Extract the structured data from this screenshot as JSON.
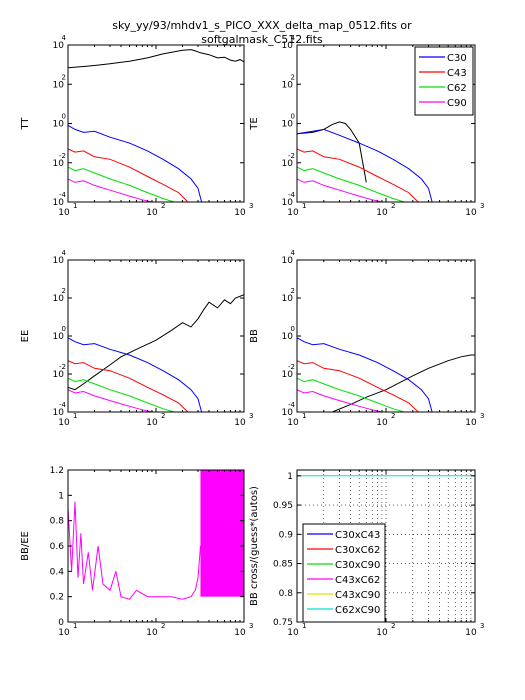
{
  "figure_title": [
    "sky_yy/93/mhdv1_s_PICO_XXX_delta_map_0512.fits or",
    "softgalmask_C512.fits"
  ],
  "chart_data": [
    {
      "id": "TT",
      "type": "line",
      "ylabel": "TT",
      "xscale": "log",
      "yscale": "log",
      "xlim": [
        10,
        1000
      ],
      "ylim": [
        0.0001,
        10000.0
      ],
      "x_tick_labels": [
        "10",
        "10",
        "10"
      ],
      "x_tick_exponents": [
        "1",
        "2",
        "3"
      ],
      "y_tick_labels": [
        "10",
        "10",
        "10",
        "10",
        "10"
      ],
      "y_tick_exponents": [
        "-4",
        "-2",
        "0",
        "2",
        "4"
      ],
      "series": [
        {
          "color": "#000000",
          "x": [
            10,
            15,
            20,
            30,
            50,
            80,
            120,
            200,
            250,
            280,
            320,
            400,
            500,
            600,
            700,
            800,
            900,
            1000
          ],
          "y": [
            700,
            800,
            900,
            1100,
            1500,
            2200,
            3500,
            5400,
            5800,
            5000,
            4000,
            3200,
            2200,
            2400,
            1700,
            1500,
            1800,
            1400
          ]
        },
        {
          "color": "#0000ff",
          "x": [
            10,
            12,
            15,
            20,
            30,
            50,
            80,
            120,
            180,
            250,
            300,
            330
          ],
          "y": [
            0.8,
            0.5,
            0.35,
            0.4,
            0.2,
            0.1,
            0.04,
            0.015,
            0.005,
            0.0015,
            0.0005,
            0.0001
          ]
        },
        {
          "color": "#ff0000",
          "x": [
            10,
            12,
            15,
            20,
            30,
            50,
            80,
            120,
            180,
            230
          ],
          "y": [
            0.05,
            0.035,
            0.04,
            0.02,
            0.015,
            0.006,
            0.002,
            0.0008,
            0.0003,
            0.0001
          ]
        },
        {
          "color": "#00e000",
          "x": [
            10,
            12,
            15,
            20,
            30,
            50,
            80,
            120,
            160
          ],
          "y": [
            0.006,
            0.004,
            0.005,
            0.003,
            0.0015,
            0.0007,
            0.0003,
            0.00015,
            0.0001
          ]
        },
        {
          "color": "#ff00ff",
          "x": [
            10,
            12,
            15,
            20,
            30,
            50,
            70,
            90
          ],
          "y": [
            0.0015,
            0.001,
            0.0012,
            0.0007,
            0.0004,
            0.0002,
            0.00013,
            0.0001
          ]
        }
      ]
    },
    {
      "id": "TE",
      "type": "line",
      "ylabel": "TE",
      "xscale": "log",
      "yscale": "log",
      "xlim": [
        10,
        1000
      ],
      "ylim": [
        0.0001,
        10000.0
      ],
      "x_tick_labels": [
        "10",
        "10",
        "10"
      ],
      "x_tick_exponents": [
        "1",
        "2",
        "3"
      ],
      "y_tick_labels": [
        "10",
        "10",
        "10",
        "10",
        "10"
      ],
      "y_tick_exponents": [
        "-4",
        "-2",
        "0",
        "2",
        "4"
      ],
      "legend": [
        "C30",
        "C43",
        "C62",
        "C90"
      ],
      "legend_colors": [
        "#0000ff",
        "#ff0000",
        "#00e000",
        "#ff00ff"
      ],
      "legend_position": "top-right",
      "series": [
        {
          "color": "#000000",
          "x": [
            10,
            15,
            20,
            25,
            30,
            35,
            40,
            50,
            60
          ],
          "y": [
            0.3,
            0.35,
            0.5,
            0.9,
            1.2,
            1.0,
            0.5,
            0.1,
            0.001
          ]
        },
        {
          "color": "#0000ff",
          "x": [
            10,
            15,
            20,
            30,
            50,
            80,
            120,
            180,
            250,
            300,
            330
          ],
          "y": [
            0.3,
            0.4,
            0.5,
            0.25,
            0.1,
            0.04,
            0.015,
            0.005,
            0.0015,
            0.0005,
            0.0001
          ]
        },
        {
          "color": "#ff0000",
          "x": [
            10,
            12,
            15,
            20,
            30,
            50,
            80,
            120,
            180,
            230
          ],
          "y": [
            0.05,
            0.035,
            0.04,
            0.02,
            0.015,
            0.006,
            0.002,
            0.0008,
            0.0003,
            0.0001
          ]
        },
        {
          "color": "#00e000",
          "x": [
            10,
            12,
            15,
            20,
            30,
            50,
            80,
            120,
            160
          ],
          "y": [
            0.006,
            0.004,
            0.005,
            0.003,
            0.0015,
            0.0007,
            0.0003,
            0.00015,
            0.0001
          ]
        },
        {
          "color": "#ff00ff",
          "x": [
            10,
            12,
            15,
            20,
            30,
            50,
            70,
            90
          ],
          "y": [
            0.0015,
            0.001,
            0.0012,
            0.0007,
            0.0004,
            0.0002,
            0.00013,
            0.0001
          ]
        }
      ]
    },
    {
      "id": "EE",
      "type": "line",
      "ylabel": "EE",
      "xscale": "log",
      "yscale": "log",
      "xlim": [
        10,
        1000
      ],
      "ylim": [
        0.0001,
        10000.0
      ],
      "x_tick_labels": [
        "10",
        "10",
        "10"
      ],
      "x_tick_exponents": [
        "1",
        "2",
        "3"
      ],
      "y_tick_labels": [
        "10",
        "10",
        "10",
        "10",
        "10"
      ],
      "y_tick_exponents": [
        "-4",
        "-2",
        "0",
        "2",
        "4"
      ],
      "series": [
        {
          "color": "#000000",
          "x": [
            10,
            12,
            15,
            20,
            30,
            40,
            60,
            100,
            150,
            200,
            250,
            300,
            350,
            400,
            500,
            600,
            700,
            800,
            1000
          ],
          "y": [
            0.002,
            0.0015,
            0.003,
            0.008,
            0.03,
            0.08,
            0.2,
            0.6,
            2,
            5,
            3,
            8,
            25,
            60,
            30,
            80,
            50,
            100,
            150
          ]
        },
        {
          "color": "#0000ff",
          "x": [
            10,
            12,
            15,
            20,
            30,
            50,
            80,
            120,
            180,
            250,
            300,
            330
          ],
          "y": [
            0.8,
            0.5,
            0.35,
            0.4,
            0.2,
            0.1,
            0.04,
            0.015,
            0.005,
            0.0015,
            0.0005,
            0.0001
          ]
        },
        {
          "color": "#ff0000",
          "x": [
            10,
            12,
            15,
            20,
            30,
            50,
            80,
            120,
            180,
            230
          ],
          "y": [
            0.05,
            0.035,
            0.04,
            0.02,
            0.015,
            0.006,
            0.002,
            0.0008,
            0.0003,
            0.0001
          ]
        },
        {
          "color": "#00e000",
          "x": [
            10,
            12,
            15,
            20,
            30,
            50,
            80,
            120,
            160
          ],
          "y": [
            0.006,
            0.004,
            0.005,
            0.003,
            0.0015,
            0.0007,
            0.0003,
            0.00015,
            0.0001
          ]
        },
        {
          "color": "#ff00ff",
          "x": [
            10,
            12,
            15,
            20,
            30,
            50,
            70,
            90
          ],
          "y": [
            0.0015,
            0.001,
            0.0012,
            0.0007,
            0.0004,
            0.0002,
            0.00013,
            0.0001
          ]
        }
      ]
    },
    {
      "id": "BB",
      "type": "line",
      "ylabel": "BB",
      "xscale": "log",
      "yscale": "log",
      "xlim": [
        10,
        1000
      ],
      "ylim": [
        0.0001,
        10000.0
      ],
      "x_tick_labels": [
        "10",
        "10",
        "10"
      ],
      "x_tick_exponents": [
        "1",
        "2",
        "3"
      ],
      "y_tick_labels": [
        "10",
        "10",
        "10",
        "10",
        "10"
      ],
      "y_tick_exponents": [
        "-4",
        "-2",
        "0",
        "2",
        "4"
      ],
      "series": [
        {
          "color": "#000000",
          "x": [
            25,
            40,
            60,
            100,
            150,
            200,
            300,
            500,
            700,
            900,
            1000
          ],
          "y": [
            0.0001,
            0.00025,
            0.0006,
            0.0015,
            0.004,
            0.008,
            0.02,
            0.05,
            0.08,
            0.1,
            0.1
          ]
        },
        {
          "color": "#0000ff",
          "x": [
            10,
            12,
            15,
            20,
            30,
            50,
            80,
            120,
            180,
            250,
            300,
            330
          ],
          "y": [
            0.8,
            0.5,
            0.35,
            0.4,
            0.2,
            0.1,
            0.04,
            0.015,
            0.005,
            0.0015,
            0.0005,
            0.0001
          ]
        },
        {
          "color": "#ff0000",
          "x": [
            10,
            12,
            15,
            20,
            30,
            50,
            80,
            120,
            180,
            230
          ],
          "y": [
            0.05,
            0.035,
            0.04,
            0.02,
            0.015,
            0.006,
            0.002,
            0.0008,
            0.0003,
            0.0001
          ]
        },
        {
          "color": "#00e000",
          "x": [
            10,
            12,
            15,
            20,
            30,
            50,
            80,
            120,
            160
          ],
          "y": [
            0.006,
            0.004,
            0.005,
            0.003,
            0.0015,
            0.0007,
            0.0003,
            0.00015,
            0.0001
          ]
        },
        {
          "color": "#ff00ff",
          "x": [
            10,
            12,
            15,
            20,
            30,
            50,
            70,
            90
          ],
          "y": [
            0.0015,
            0.001,
            0.0012,
            0.0007,
            0.0004,
            0.0002,
            0.00013,
            0.0001
          ]
        }
      ]
    },
    {
      "id": "BBEE",
      "type": "line",
      "ylabel": "BB/EE",
      "xscale": "log",
      "yscale": "linear",
      "xlim": [
        10,
        1000
      ],
      "ylim": [
        0,
        1.2
      ],
      "x_tick_labels": [
        "10",
        "10",
        "10"
      ],
      "x_tick_exponents": [
        "1",
        "2",
        "3"
      ],
      "y_tick_labels": [
        "0",
        "0.2",
        "0.4",
        "0.6",
        "0.8",
        "1",
        "1.2"
      ],
      "y_ticks": [
        0,
        0.2,
        0.4,
        0.6,
        0.8,
        1,
        1.2
      ],
      "series": [
        {
          "color": "#ff00ff",
          "x": [
            10,
            11,
            12,
            13,
            14,
            15,
            17,
            19,
            22,
            25,
            30,
            35,
            40,
            50,
            60,
            80,
            100,
            150,
            200,
            250,
            280,
            300,
            320
          ],
          "y": [
            0.9,
            0.4,
            0.95,
            0.35,
            0.7,
            0.3,
            0.55,
            0.25,
            0.6,
            0.3,
            0.25,
            0.4,
            0.2,
            0.18,
            0.25,
            0.2,
            0.2,
            0.2,
            0.18,
            0.2,
            0.25,
            0.35,
            0.6
          ]
        }
      ],
      "fill_band": {
        "color": "#ff00ff",
        "x_from": 320,
        "x_to": 1000,
        "y_from": 0.2,
        "y_to": 1.2
      }
    },
    {
      "id": "BBcross",
      "type": "line",
      "ylabel": "BB cross/(guess*(autos)",
      "xscale": "log",
      "yscale": "linear",
      "xlim": [
        10,
        1000
      ],
      "ylim": [
        0.75,
        1.01
      ],
      "x_tick_labels": [
        "10",
        "10",
        "10"
      ],
      "x_tick_exponents": [
        "1",
        "2",
        "3"
      ],
      "y_tick_labels": [
        "0.75",
        "0.8",
        "0.85",
        "0.9",
        "0.95",
        "1"
      ],
      "y_ticks": [
        0.75,
        0.8,
        0.85,
        0.9,
        0.95,
        1
      ],
      "grid": true,
      "legend": [
        "C30xC43",
        "C30xC62",
        "C30xC90",
        "C43xC62",
        "C43xC90",
        "C62xC90"
      ],
      "legend_colors": [
        "#0000ff",
        "#ff0000",
        "#00e000",
        "#ff00ff",
        "#e0e000",
        "#00e0e0"
      ],
      "legend_position": "bottom-left",
      "series": [
        {
          "color": "#00e0e0",
          "x": [
            10,
            1000
          ],
          "y": [
            1,
            1
          ]
        }
      ]
    }
  ]
}
